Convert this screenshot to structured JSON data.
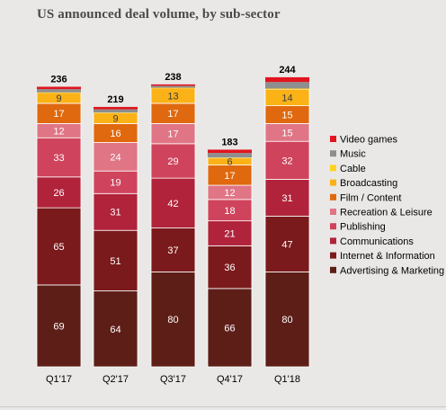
{
  "chart_data": {
    "type": "bar",
    "stacked": true,
    "title": "US announced deal volume, by sub-sector",
    "categories": [
      "Q1'17",
      "Q2'17",
      "Q3'17",
      "Q4'17",
      "Q1'18"
    ],
    "totals": [
      236,
      219,
      238,
      183,
      244
    ],
    "series": [
      {
        "name": "Advertising & Marketing",
        "color": "#5e1e18",
        "values": [
          69,
          64,
          80,
          66,
          80
        ]
      },
      {
        "name": "Internet & Information",
        "color": "#7b1a1c",
        "values": [
          65,
          51,
          37,
          36,
          47
        ]
      },
      {
        "name": "Communications",
        "color": "#b0233a",
        "values": [
          26,
          31,
          42,
          21,
          31
        ]
      },
      {
        "name": "Publishing",
        "color": "#d0435c",
        "values": [
          33,
          19,
          29,
          18,
          32
        ]
      },
      {
        "name": "Recreation & Leisure",
        "color": "#e07585",
        "values": [
          12,
          24,
          17,
          12,
          15
        ]
      },
      {
        "name": "Film / Content",
        "color": "#e0680e",
        "values": [
          17,
          16,
          17,
          17,
          15
        ]
      },
      {
        "name": "Broadcasting",
        "color": "#fbb216",
        "values": [
          9,
          9,
          13,
          6,
          14
        ]
      },
      {
        "name": "Cable",
        "color": "#ffd21f",
        "values": [
          null,
          null,
          null,
          null,
          null
        ]
      },
      {
        "name": "Music",
        "color": "#8e8e8e",
        "values": [
          null,
          null,
          null,
          null,
          null
        ]
      },
      {
        "name": "Video games",
        "color": "#e2141f",
        "values": [
          null,
          null,
          null,
          null,
          null
        ]
      }
    ],
    "legend_order": [
      "Video games",
      "Music",
      "Cable",
      "Broadcasting",
      "Film / Content",
      "Recreation & Leisure",
      "Publishing",
      "Communications",
      "Internet & Information",
      "Advertising & Marketing"
    ],
    "legend_position": "right",
    "grid": false
  }
}
